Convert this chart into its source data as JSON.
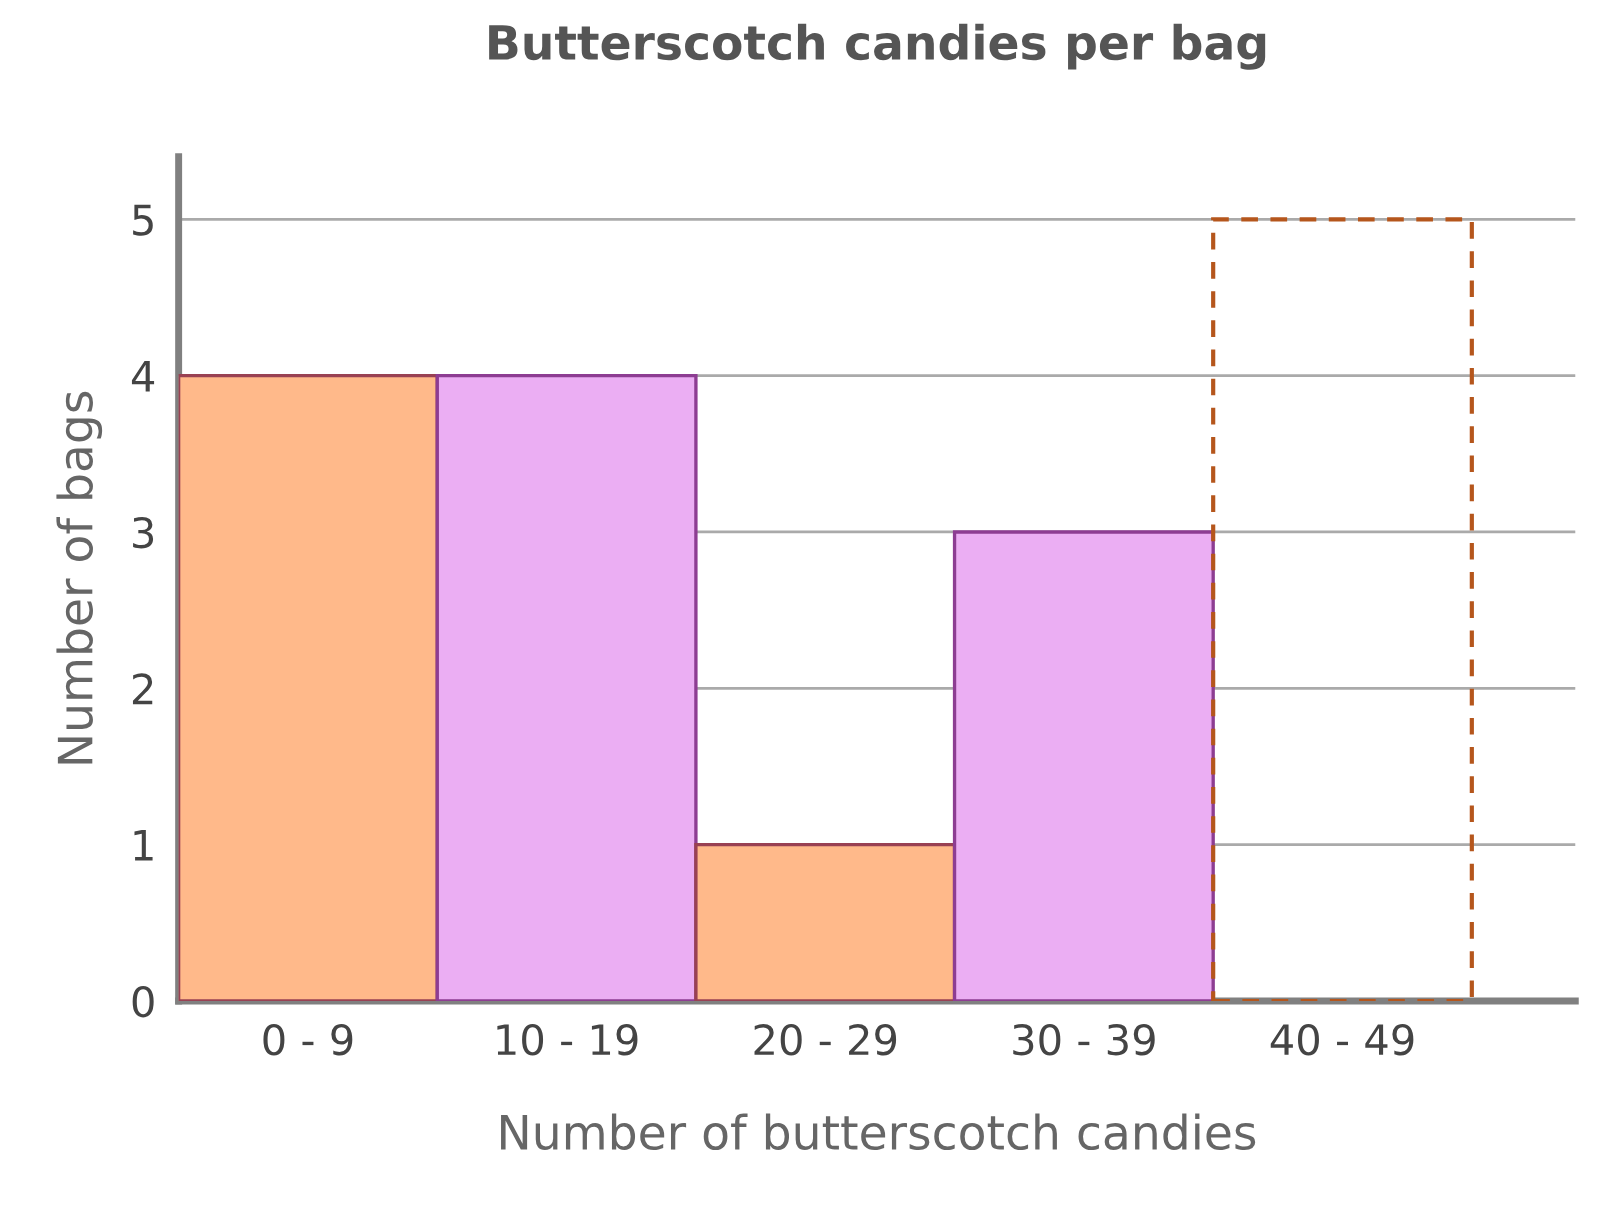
{
  "chart_data": {
    "type": "bar",
    "title": "Butterscotch candies per bag",
    "xlabel": "Number of butterscotch candies",
    "ylabel": "Number of bags",
    "categories": [
      "0 - 9",
      "10 - 19",
      "20 - 29",
      "30 - 39",
      "40 - 49"
    ],
    "series": [
      {
        "colors": [
          "#ffb98a",
          "#ebaef3",
          "#ffb98a",
          "#ebaef3",
          null
        ],
        "values": [
          4,
          4,
          1,
          3,
          null
        ]
      },
      {
        "color": "#b5561c",
        "line_style": "dashed",
        "values": [
          null,
          null,
          null,
          null,
          5
        ]
      }
    ],
    "ylim": [
      0,
      5.4
    ],
    "yticks": [
      0,
      1,
      2,
      3,
      4,
      5
    ],
    "grid": "y",
    "legend": false
  }
}
